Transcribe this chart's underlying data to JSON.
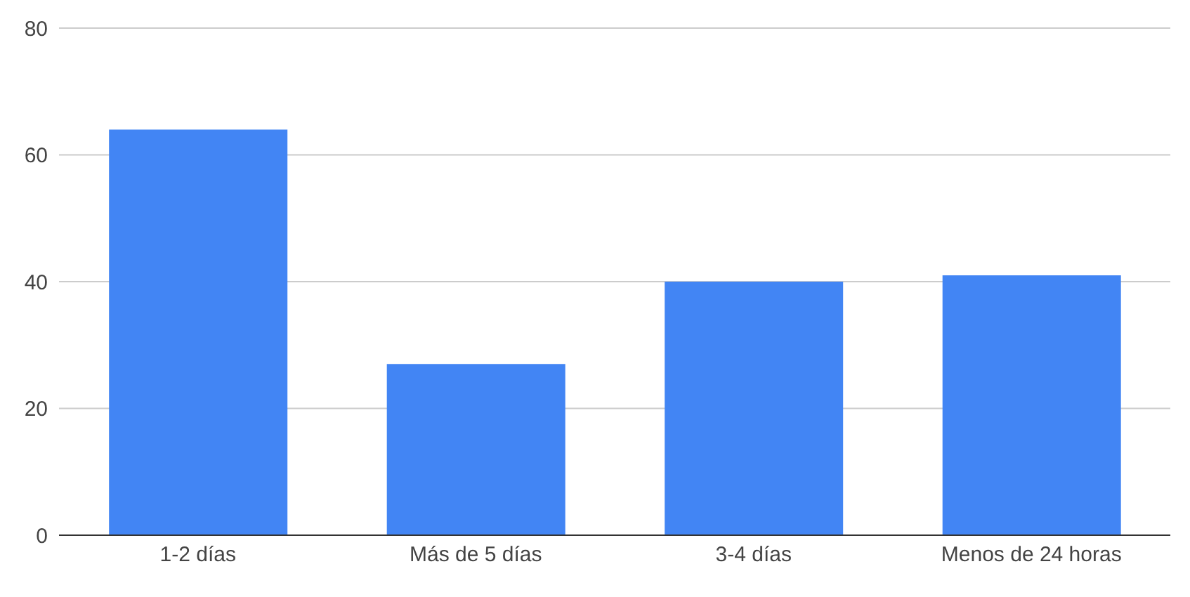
{
  "chart_data": {
    "type": "bar",
    "categories": [
      "1-2 días",
      "Más de 5 días",
      "3-4 días",
      "Menos de 24 horas"
    ],
    "values": [
      64,
      27,
      40,
      41
    ],
    "color": "#4285f4",
    "ylim": [
      0,
      80
    ],
    "yticks": [
      0,
      20,
      40,
      60,
      80
    ],
    "grid": "y"
  }
}
